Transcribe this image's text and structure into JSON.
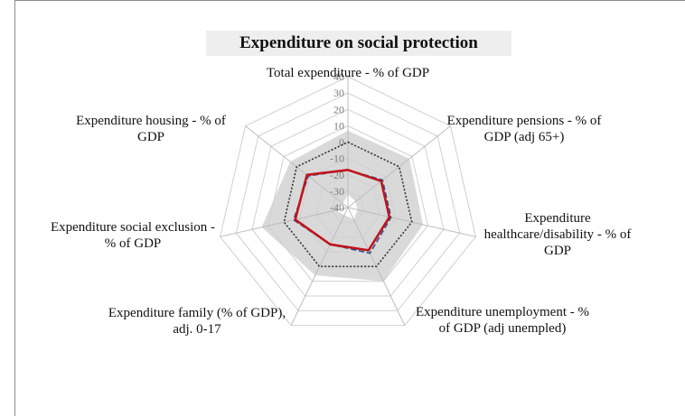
{
  "chart_data": {
    "type": "radar",
    "title": "Expenditure on social protection",
    "axes": [
      [
        "Total expenditure - % of GDP"
      ],
      [
        "Expenditure pensions - % of",
        "GDP (adj 65+)"
      ],
      [
        "Expenditure",
        "healthcare/disability - % of",
        "GDP"
      ],
      [
        "Expenditure unemployment - %",
        "of GDP (adj unempled)"
      ],
      [
        "Expenditure family (% of GDP),",
        "adj. 0-17"
      ],
      [
        "Expenditure social exclusion -",
        "% of GDP"
      ],
      [
        "Expenditure housing - % of",
        "GDP"
      ]
    ],
    "rticks": [
      40,
      30,
      20,
      10,
      0,
      -10,
      -20,
      -30,
      -40
    ],
    "rlim": [
      -40,
      40
    ],
    "band": {
      "outer": [
        7,
        8,
        7,
        10,
        6,
        14,
        5
      ],
      "inner": [
        -32,
        -34,
        -34,
        -32,
        -35,
        -32,
        -36
      ]
    },
    "series": [
      {
        "style": "dotted",
        "color": "#333333",
        "values": [
          0,
          0,
          0,
          0,
          0,
          0,
          0
        ]
      },
      {
        "style": "dashed",
        "color": "#2f4d8a",
        "values": [
          -17,
          -13,
          -13,
          -9,
          -15,
          -6,
          -9
        ]
      },
      {
        "style": "solid",
        "color": "#c0141c",
        "values": [
          -17,
          -14,
          -14,
          -11,
          -15,
          -7,
          -8
        ]
      }
    ],
    "legend": "none",
    "grid": true
  }
}
